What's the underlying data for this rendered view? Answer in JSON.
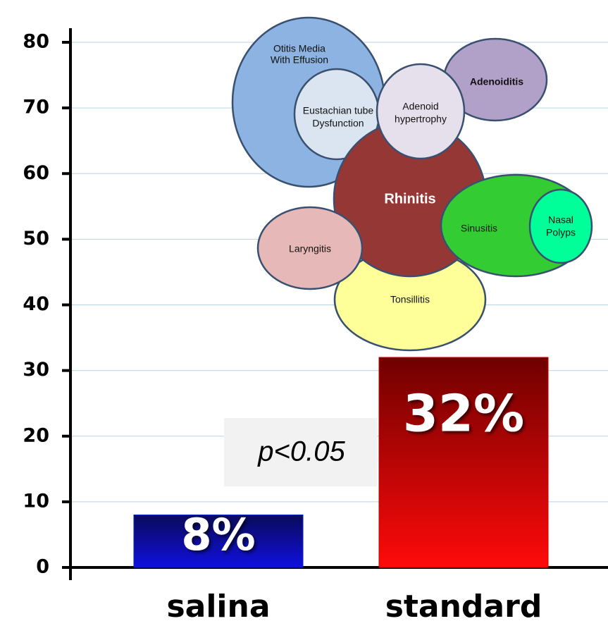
{
  "chart_data": {
    "type": "bar",
    "categories": [
      "salina",
      "standard"
    ],
    "values": [
      8,
      32
    ],
    "value_labels": [
      "8%",
      "32%"
    ],
    "ylim": [
      0,
      80
    ],
    "yticks": [
      0,
      10,
      20,
      30,
      40,
      50,
      60,
      70,
      80
    ],
    "grid": true,
    "annotations": [
      "p<0.05"
    ],
    "diagram": {
      "bubbles": [
        {
          "lines": [
            "Otitis Media",
            "With Effusion"
          ]
        },
        {
          "lines": [
            "Eustachian tube",
            "Dysfunction"
          ]
        },
        {
          "lines": [
            "Adenoiditis"
          ]
        },
        {
          "lines": [
            "Tonsillitis"
          ]
        },
        {
          "lines": [
            "Rhinitis"
          ]
        },
        {
          "lines": [
            "Adenoid",
            "hypertrophy"
          ]
        },
        {
          "lines": [
            "Laryngitis"
          ]
        },
        {
          "lines": [
            "Sinusitis"
          ]
        },
        {
          "lines": [
            "Nasal",
            "Polyps"
          ]
        }
      ]
    }
  }
}
